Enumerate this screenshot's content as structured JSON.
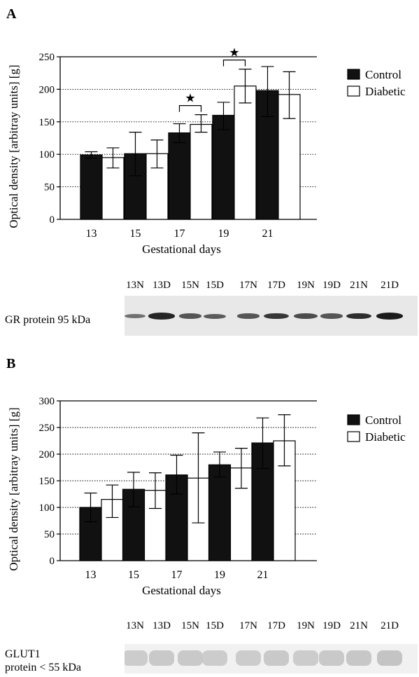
{
  "panels": [
    {
      "letter": "A",
      "chart_data": {
        "type": "bar",
        "ylabel": "Optical density [arbitray units] [g]",
        "xlabel": "Gestational days",
        "ylim": [
          0,
          250
        ],
        "yticks": [
          0,
          50,
          100,
          150,
          200,
          250
        ],
        "categories": [
          "13",
          "15",
          "17",
          "19",
          "21"
        ],
        "series": [
          {
            "name": "Control",
            "color": "#111111",
            "values": [
              99,
              101,
              133,
              160,
              198
            ],
            "err_low": [
              94,
              67,
              118,
              138,
              158
            ],
            "err_high": [
              104,
              134,
              147,
              180,
              235
            ]
          },
          {
            "name": "Diabetic",
            "color": "#ffffff",
            "values": [
              95,
              101,
              146,
              205,
              192
            ],
            "err_low": [
              79,
              79,
              134,
              179,
              155
            ],
            "err_high": [
              110,
              122,
              161,
              231,
              227
            ]
          }
        ],
        "grid": "dotted",
        "legend_position": "right",
        "significance": [
          {
            "categoryIndex": 2,
            "symbol": "★"
          },
          {
            "categoryIndex": 3,
            "symbol": "★"
          }
        ]
      },
      "blot": {
        "protein_label": [
          "GR protein 95 kDa"
        ],
        "lanes": [
          "13N",
          "13D",
          "15N",
          "15D",
          "17N",
          "17D",
          "19N",
          "19D",
          "21N",
          "21D"
        ],
        "band_intensity": [
          0.35,
          0.85,
          0.55,
          0.5,
          0.55,
          0.75,
          0.6,
          0.55,
          0.8,
          0.9
        ]
      }
    },
    {
      "letter": "B",
      "chart_data": {
        "type": "bar",
        "ylabel": "Optical density [arbitray units] [g]",
        "xlabel": "Gestational days",
        "ylim": [
          0,
          300
        ],
        "yticks": [
          0,
          50,
          100,
          150,
          200,
          250,
          300
        ],
        "categories": [
          "13",
          "15",
          "17",
          "19",
          "21"
        ],
        "series": [
          {
            "name": "Control",
            "color": "#111111",
            "values": [
              100,
              134,
              161,
              180,
              221
            ],
            "err_low": [
              73,
              101,
              125,
              157,
              173
            ],
            "err_high": [
              127,
              166,
              198,
              204,
              268
            ]
          },
          {
            "name": "Diabetic",
            "color": "#ffffff",
            "values": [
              115,
              132,
              155,
              174,
              225
            ],
            "err_low": [
              81,
              98,
              71,
              136,
              178
            ],
            "err_high": [
              142,
              165,
              240,
              211,
              274
            ]
          }
        ],
        "grid": "dotted",
        "legend_position": "right",
        "significance": []
      },
      "blot": {
        "protein_label": [
          "GLUT1",
          "protein < 55 kDa"
        ],
        "lanes": [
          "13N",
          "13D",
          "15N",
          "15D",
          "17N",
          "17D",
          "19N",
          "19D",
          "21N",
          "21D"
        ],
        "band_intensity": [
          0.3,
          0.35,
          0.35,
          0.3,
          0.3,
          0.35,
          0.3,
          0.35,
          0.4,
          0.45
        ]
      }
    }
  ]
}
